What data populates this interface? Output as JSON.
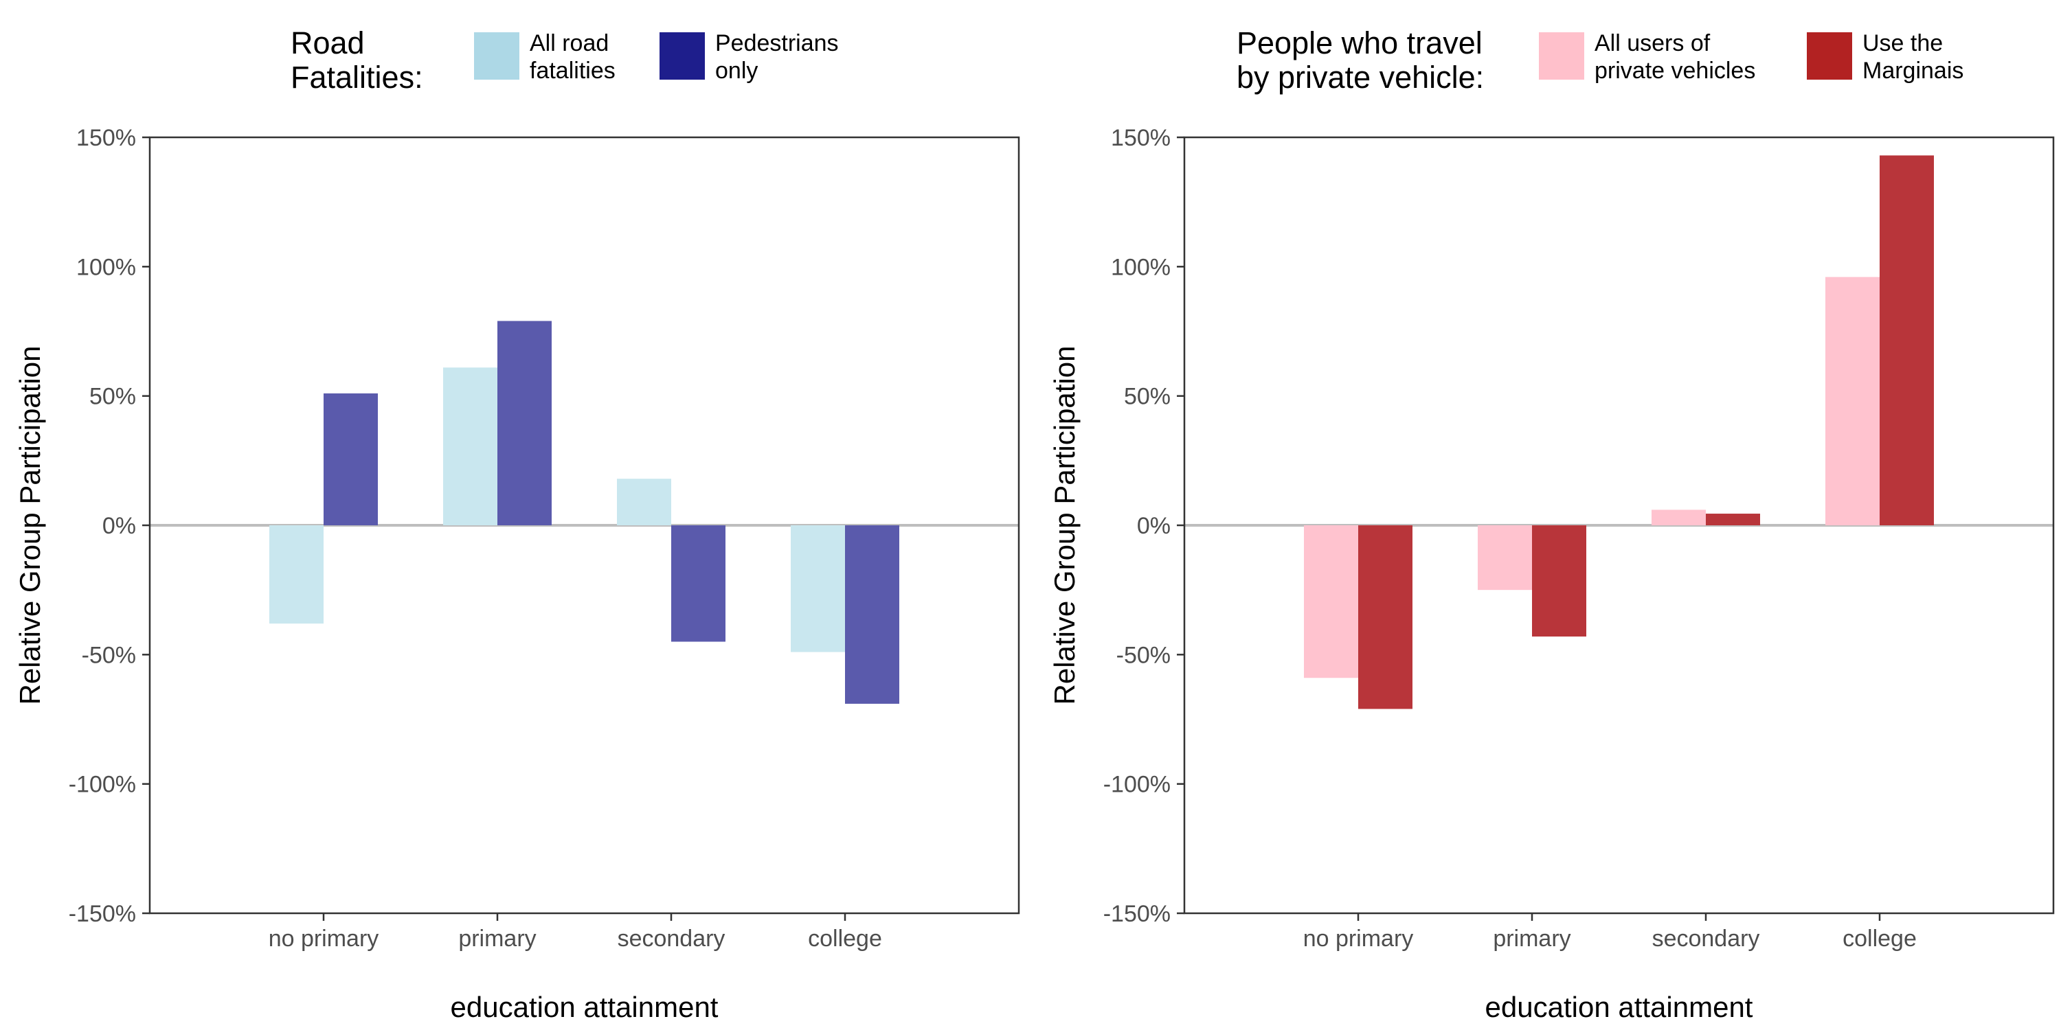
{
  "chart_data": [
    {
      "type": "bar",
      "xlabel": "education attainment",
      "ylabel": "Relative Group Participation",
      "categories": [
        "no primary",
        "primary",
        "secondary",
        "college"
      ],
      "ylim": [
        -150,
        150
      ],
      "yticks": [
        150,
        100,
        50,
        0,
        -50,
        -100,
        -150
      ],
      "ytick_labels": [
        "150%",
        "100%",
        "50%",
        "0%",
        "-50%",
        "-100%",
        "-150%"
      ],
      "legend_title_lines": [
        "Road",
        "Fatalities:"
      ],
      "grid": false,
      "legend_position": "top",
      "series": [
        {
          "name": "All road fatalities",
          "name_lines": [
            "All road",
            "fatalities"
          ],
          "legend_color": "#add8e6",
          "bar_color": "#c9e7ef",
          "values": [
            -38,
            61,
            18,
            -49
          ]
        },
        {
          "name": "Pedestrians only",
          "name_lines": [
            "Pedestrians",
            "only"
          ],
          "legend_color": "#1e1e8c",
          "bar_color": "#5a5aac",
          "values": [
            51,
            79,
            -45,
            -69
          ]
        }
      ]
    },
    {
      "type": "bar",
      "xlabel": "education attainment",
      "ylabel": "Relative Group Participation",
      "categories": [
        "no primary",
        "primary",
        "secondary",
        "college"
      ],
      "ylim": [
        -150,
        150
      ],
      "yticks": [
        150,
        100,
        50,
        0,
        -50,
        -100,
        -150
      ],
      "ytick_labels": [
        "150%",
        "100%",
        "50%",
        "0%",
        "-50%",
        "-100%",
        "-150%"
      ],
      "legend_title_lines": [
        "People who travel",
        "by private vehicle:"
      ],
      "grid": false,
      "legend_position": "top",
      "series": [
        {
          "name": "All users of private vehicles",
          "name_lines": [
            "All users of",
            "private vehicles"
          ],
          "legend_color": "#ffc0cb",
          "bar_color": "#ffc3cf",
          "values": [
            -59,
            -25,
            6,
            96
          ]
        },
        {
          "name": "Use the Marginais",
          "name_lines": [
            "Use the",
            "Marginais"
          ],
          "legend_color": "#b22222",
          "bar_color": "#b8353a",
          "values": [
            -71,
            -43,
            4.5,
            143
          ]
        }
      ]
    }
  ]
}
